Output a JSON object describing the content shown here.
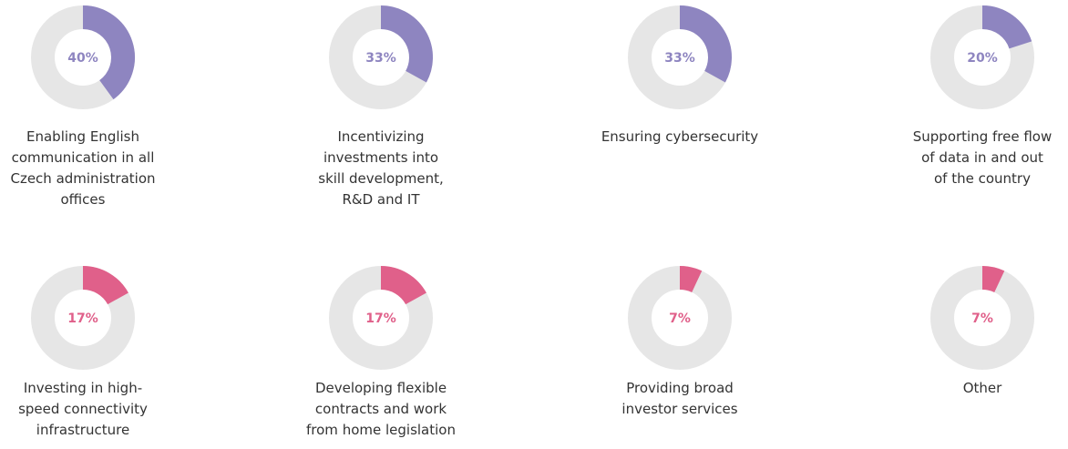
{
  "chart_data": [
    {
      "type": "donut",
      "values": [
        40
      ],
      "value_labels": [
        "40%"
      ],
      "color": "#8e85c0",
      "label": [
        "Enabling English",
        "communication in all",
        "Czech administration",
        "offices"
      ]
    },
    {
      "type": "donut",
      "values": [
        33
      ],
      "value_labels": [
        "33%"
      ],
      "color": "#8e85c0",
      "label": [
        "Incentivizing",
        "investments into",
        "skill development,",
        "R&D and IT"
      ]
    },
    {
      "type": "donut",
      "values": [
        33
      ],
      "value_labels": [
        "33%"
      ],
      "color": "#8e85c0",
      "label": [
        "Ensuring cybersecurity"
      ]
    },
    {
      "type": "donut",
      "values": [
        20
      ],
      "value_labels": [
        "20%"
      ],
      "color": "#8e85c0",
      "label": [
        "Supporting free flow",
        "of data in and out",
        "of the country"
      ]
    },
    {
      "type": "donut",
      "values": [
        17
      ],
      "value_labels": [
        "17%"
      ],
      "color": "#e0608a",
      "label": [
        "Investing in high-",
        "speed connectivity",
        "infrastructure"
      ]
    },
    {
      "type": "donut",
      "values": [
        17
      ],
      "value_labels": [
        "17%"
      ],
      "color": "#e0608a",
      "label": [
        "Developing flexible",
        "contracts and work",
        "from home legislation"
      ]
    },
    {
      "type": "donut",
      "values": [
        7
      ],
      "value_labels": [
        "7%"
      ],
      "color": "#e0608a",
      "label": [
        "Providing broad",
        "investor services"
      ]
    },
    {
      "type": "donut",
      "values": [
        7
      ],
      "value_labels": [
        "7%"
      ],
      "color": "#e0608a",
      "label": [
        "Other"
      ]
    }
  ]
}
